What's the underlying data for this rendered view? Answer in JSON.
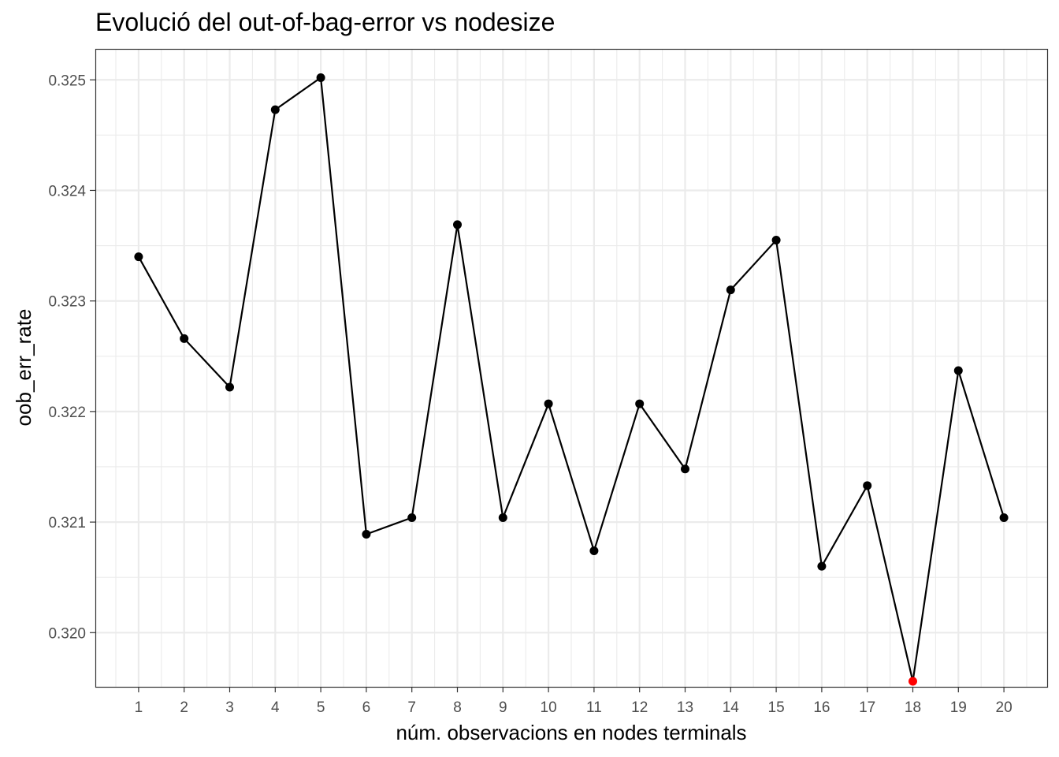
{
  "chart_data": {
    "type": "line",
    "title": "Evolució del out-of-bag-error vs nodesize",
    "xlabel": "núm. observacions en nodes terminals",
    "ylabel": "oob_err_rate",
    "x": [
      1,
      2,
      3,
      4,
      5,
      6,
      7,
      8,
      9,
      10,
      11,
      12,
      13,
      14,
      15,
      16,
      17,
      18,
      19,
      20
    ],
    "series": [
      {
        "values": [
          0.3234,
          0.32266,
          0.32222,
          0.32473,
          0.32502,
          0.32089,
          0.32104,
          0.32369,
          0.32104,
          0.32207,
          0.32074,
          0.32207,
          0.32148,
          0.3231,
          0.32355,
          0.3206,
          0.32133,
          0.31956,
          0.32237,
          0.32104
        ],
        "color": "#000000"
      }
    ],
    "highlight": {
      "x": 18,
      "y": 0.31956,
      "color": "#ff0000"
    },
    "xticks": [
      "1",
      "2",
      "3",
      "4",
      "5",
      "6",
      "7",
      "8",
      "9",
      "10",
      "11",
      "12",
      "13",
      "14",
      "15",
      "16",
      "17",
      "18",
      "19",
      "20"
    ],
    "yticks": [
      "0.320",
      "0.321",
      "0.322",
      "0.323",
      "0.324",
      "0.325"
    ],
    "ytick_values": [
      0.32,
      0.321,
      0.322,
      0.323,
      0.324,
      0.325
    ],
    "xlim": [
      0.05,
      20.95
    ],
    "ylim": [
      0.31951,
      0.32528
    ],
    "grid": true,
    "theme": "bw"
  }
}
